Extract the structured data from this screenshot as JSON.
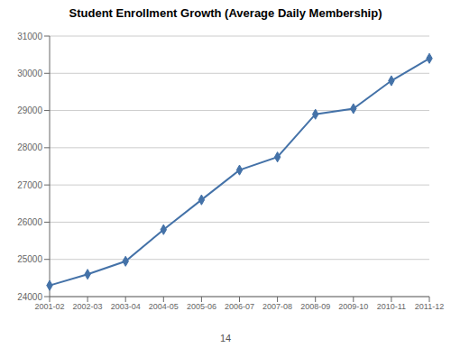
{
  "chart_data": {
    "type": "line",
    "title": "Student Enrollment Growth (Average Daily Membership)",
    "categories": [
      "2001-02",
      "2002-03",
      "2003-04",
      "2004-05",
      "2005-06",
      "2006-07",
      "2007-08",
      "2008-09",
      "2009-10",
      "2010-11",
      "2011-12"
    ],
    "values": [
      24300,
      24600,
      24950,
      25800,
      26600,
      27400,
      27750,
      28900,
      29050,
      29800,
      30400
    ],
    "color": "#4472a8",
    "marker": "diamond",
    "ylim": [
      24000,
      31000
    ],
    "yticks": [
      24000,
      25000,
      26000,
      27000,
      28000,
      29000,
      30000,
      31000
    ],
    "grid": true,
    "annotations": [
      "14"
    ]
  }
}
